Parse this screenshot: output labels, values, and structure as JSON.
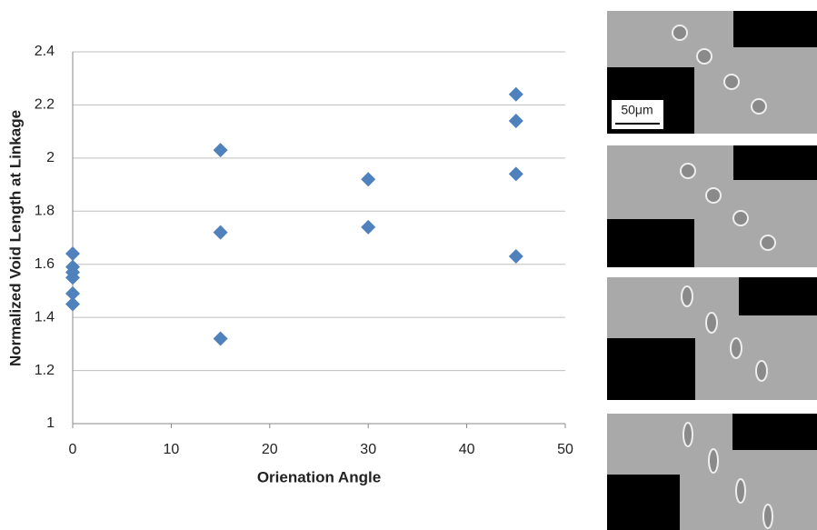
{
  "chart_data": {
    "type": "scatter",
    "x": [
      0,
      0,
      0,
      0,
      0,
      0,
      15,
      15,
      15,
      30,
      30,
      45,
      45,
      45,
      45
    ],
    "values": [
      1.64,
      1.59,
      1.57,
      1.55,
      1.49,
      1.45,
      2.03,
      1.72,
      1.32,
      1.92,
      1.74,
      2.24,
      2.14,
      1.94,
      1.63
    ],
    "color": "#4f81bd",
    "xlabel": "Orienation Angle",
    "ylabel": "Normalized Void Length at Linkage",
    "xlim": [
      0,
      50
    ],
    "xticks": [
      0,
      10,
      20,
      30,
      40,
      50
    ],
    "ylim": [
      1,
      2.4
    ],
    "yticks": [
      1,
      1.2,
      1.4,
      1.6,
      1.8,
      2,
      2.2,
      2.4
    ],
    "grid": true,
    "scale_bar_label": "50μm"
  }
}
